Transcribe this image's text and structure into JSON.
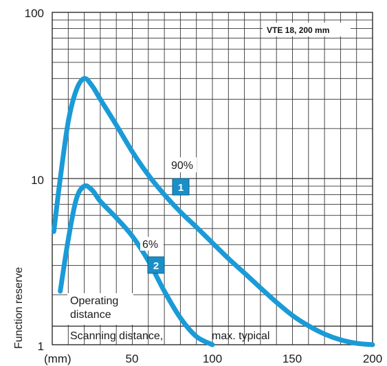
{
  "chart_data": {
    "type": "line",
    "title_box": "VTE 18, 200 mm",
    "ylabel": "Function reserve",
    "x_unit_label": "(mm)",
    "xlim": [
      0,
      200
    ],
    "ylim": [
      1,
      100
    ],
    "y_scale": "log",
    "x_ticks": [
      "50",
      "100",
      "150",
      "200"
    ],
    "y_ticks": [
      "1",
      "10",
      "100"
    ],
    "grid": true,
    "series": [
      {
        "name": "90%",
        "badge": "1",
        "x": [
          1,
          5,
          10,
          15,
          20,
          25,
          30,
          40,
          50,
          60,
          70,
          80,
          90,
          100,
          110,
          120,
          130,
          140,
          150,
          160,
          170,
          180,
          190,
          200
        ],
        "y": [
          4.8,
          10,
          22,
          34,
          40,
          36,
          30,
          21,
          14.5,
          10.5,
          8,
          6.3,
          5.1,
          4.1,
          3.3,
          2.7,
          2.2,
          1.8,
          1.5,
          1.3,
          1.16,
          1.07,
          1.02,
          1.0
        ]
      },
      {
        "name": "6%",
        "badge": "2",
        "x": [
          5,
          10,
          15,
          20,
          25,
          30,
          40,
          50,
          60,
          70,
          80,
          90,
          100
        ],
        "y": [
          2.1,
          4.3,
          7.5,
          9.0,
          8.5,
          7.3,
          5.8,
          4.5,
          3.2,
          2.1,
          1.45,
          1.12,
          1.0
        ]
      }
    ],
    "regions": [
      {
        "label_1": "Operating",
        "label_2": "distance"
      },
      {
        "label_1": "Scanning distance,",
        "label_2": "max. typical"
      }
    ]
  }
}
